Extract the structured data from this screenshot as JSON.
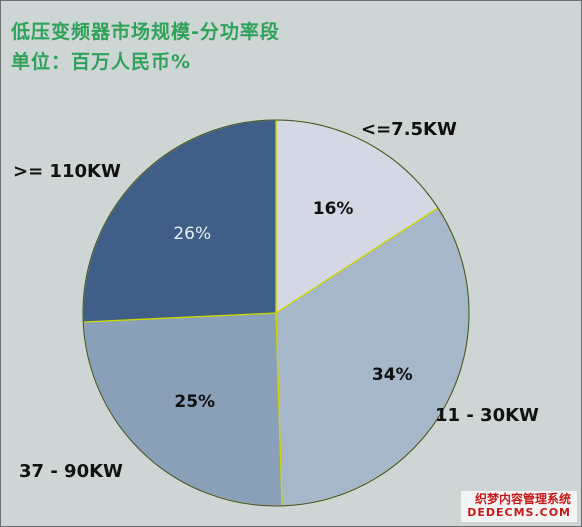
{
  "chart_data": {
    "type": "pie",
    "title": "低压变频器市场规模-分功率段",
    "subtitle": "单位：百万人民币%",
    "categories": [
      "<=7.5KW",
      "11 - 30KW",
      "37 - 90KW",
      ">= 110KW"
    ],
    "values": [
      16,
      34,
      25,
      26
    ],
    "value_labels": [
      "16%",
      "34%",
      "25%",
      "26%"
    ],
    "start_angle_deg": 0,
    "direction": "clockwise",
    "legend": "none",
    "grid": false
  },
  "colors": {
    "slices": [
      "#d4d8e5",
      "#a5b7c8",
      "#8aa0b9",
      "#3f5f89"
    ],
    "title": "#2fa25a",
    "border": "#cfd600",
    "label_dark": "#111111",
    "label_light": "#e8eef6"
  },
  "watermark": {
    "cn": "织梦内容管理系统",
    "en": "DEDECMS.COM"
  }
}
